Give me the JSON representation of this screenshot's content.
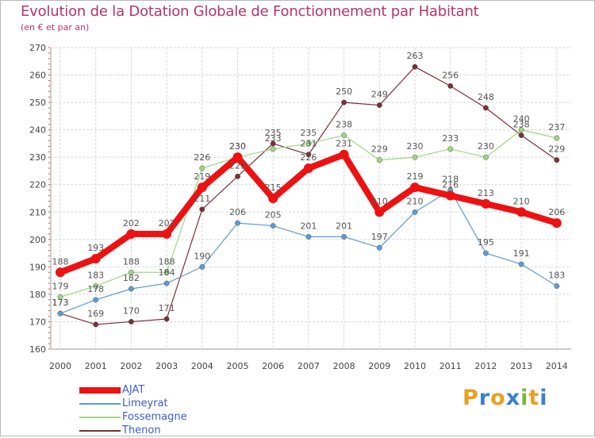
{
  "title": "Evolution de la Dotation Globale de Fonctionnement par Habitant",
  "subtitle": "(en € et par an)",
  "logo": {
    "letters": [
      "P",
      "r",
      "o",
      "x",
      "i",
      "t",
      "i"
    ],
    "colors": [
      "#e8a021",
      "#3a7fd0",
      "#e8a021",
      "#3a7fd0",
      "#7ab53a",
      "#e8a021",
      "#3a7fd0"
    ]
  },
  "chart_data": {
    "type": "line",
    "x": [
      "2000",
      "2001",
      "2002",
      "2003",
      "2004",
      "2005",
      "2006",
      "2007",
      "2008",
      "2009",
      "2010",
      "2011",
      "2012",
      "2013",
      "2014"
    ],
    "ylim": [
      160,
      270
    ],
    "yticks": [
      160,
      170,
      180,
      190,
      200,
      210,
      220,
      230,
      240,
      250,
      260,
      270
    ],
    "grid": true,
    "legend_position": "bottom-left",
    "series": [
      {
        "name": "AJAT",
        "color": "#ee1111",
        "values": [
          188,
          193,
          202,
          202,
          219,
          230,
          215,
          226,
          231,
          210,
          219,
          216,
          213,
          210,
          206
        ]
      },
      {
        "name": "Limeyrat",
        "color": "#5b9bd5",
        "values": [
          173,
          178,
          182,
          184,
          190,
          206,
          205,
          201,
          201,
          197,
          210,
          218,
          195,
          191,
          183
        ]
      },
      {
        "name": "Fossemagne",
        "color": "#9fd67f",
        "values": [
          179,
          183,
          188,
          188,
          226,
          230,
          233,
          235,
          238,
          229,
          230,
          233,
          230,
          240,
          237
        ]
      },
      {
        "name": "Thenon",
        "color": "#7a2f35",
        "values": [
          173,
          169,
          170,
          171,
          211,
          223,
          235,
          231,
          250,
          249,
          263,
          256,
          248,
          238,
          229
        ]
      }
    ]
  }
}
